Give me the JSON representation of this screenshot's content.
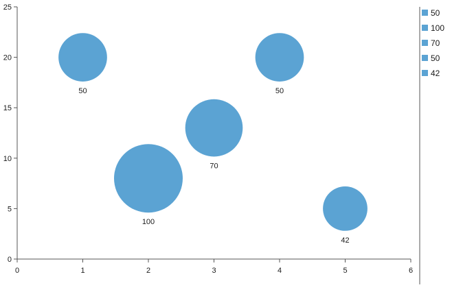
{
  "chart_data": {
    "type": "bubble",
    "xlim": [
      0,
      6
    ],
    "ylim": [
      0,
      25
    ],
    "x_ticks": [
      0,
      1,
      2,
      3,
      4,
      5,
      6
    ],
    "y_ticks": [
      0,
      5,
      10,
      15,
      20,
      25
    ],
    "grid": false,
    "legend_position": "right",
    "points": [
      {
        "x": 1,
        "y": 20,
        "size": 50,
        "label": "50"
      },
      {
        "x": 2,
        "y": 8,
        "size": 100,
        "label": "100"
      },
      {
        "x": 3,
        "y": 13,
        "size": 70,
        "label": "70"
      },
      {
        "x": 4,
        "y": 20,
        "size": 50,
        "label": "50"
      },
      {
        "x": 5,
        "y": 5,
        "size": 42,
        "label": "42"
      }
    ],
    "legend_entries": [
      "50",
      "100",
      "70",
      "50",
      "42"
    ],
    "colors": {
      "bubble": "#5ba3d3",
      "axis": "#555555"
    }
  }
}
